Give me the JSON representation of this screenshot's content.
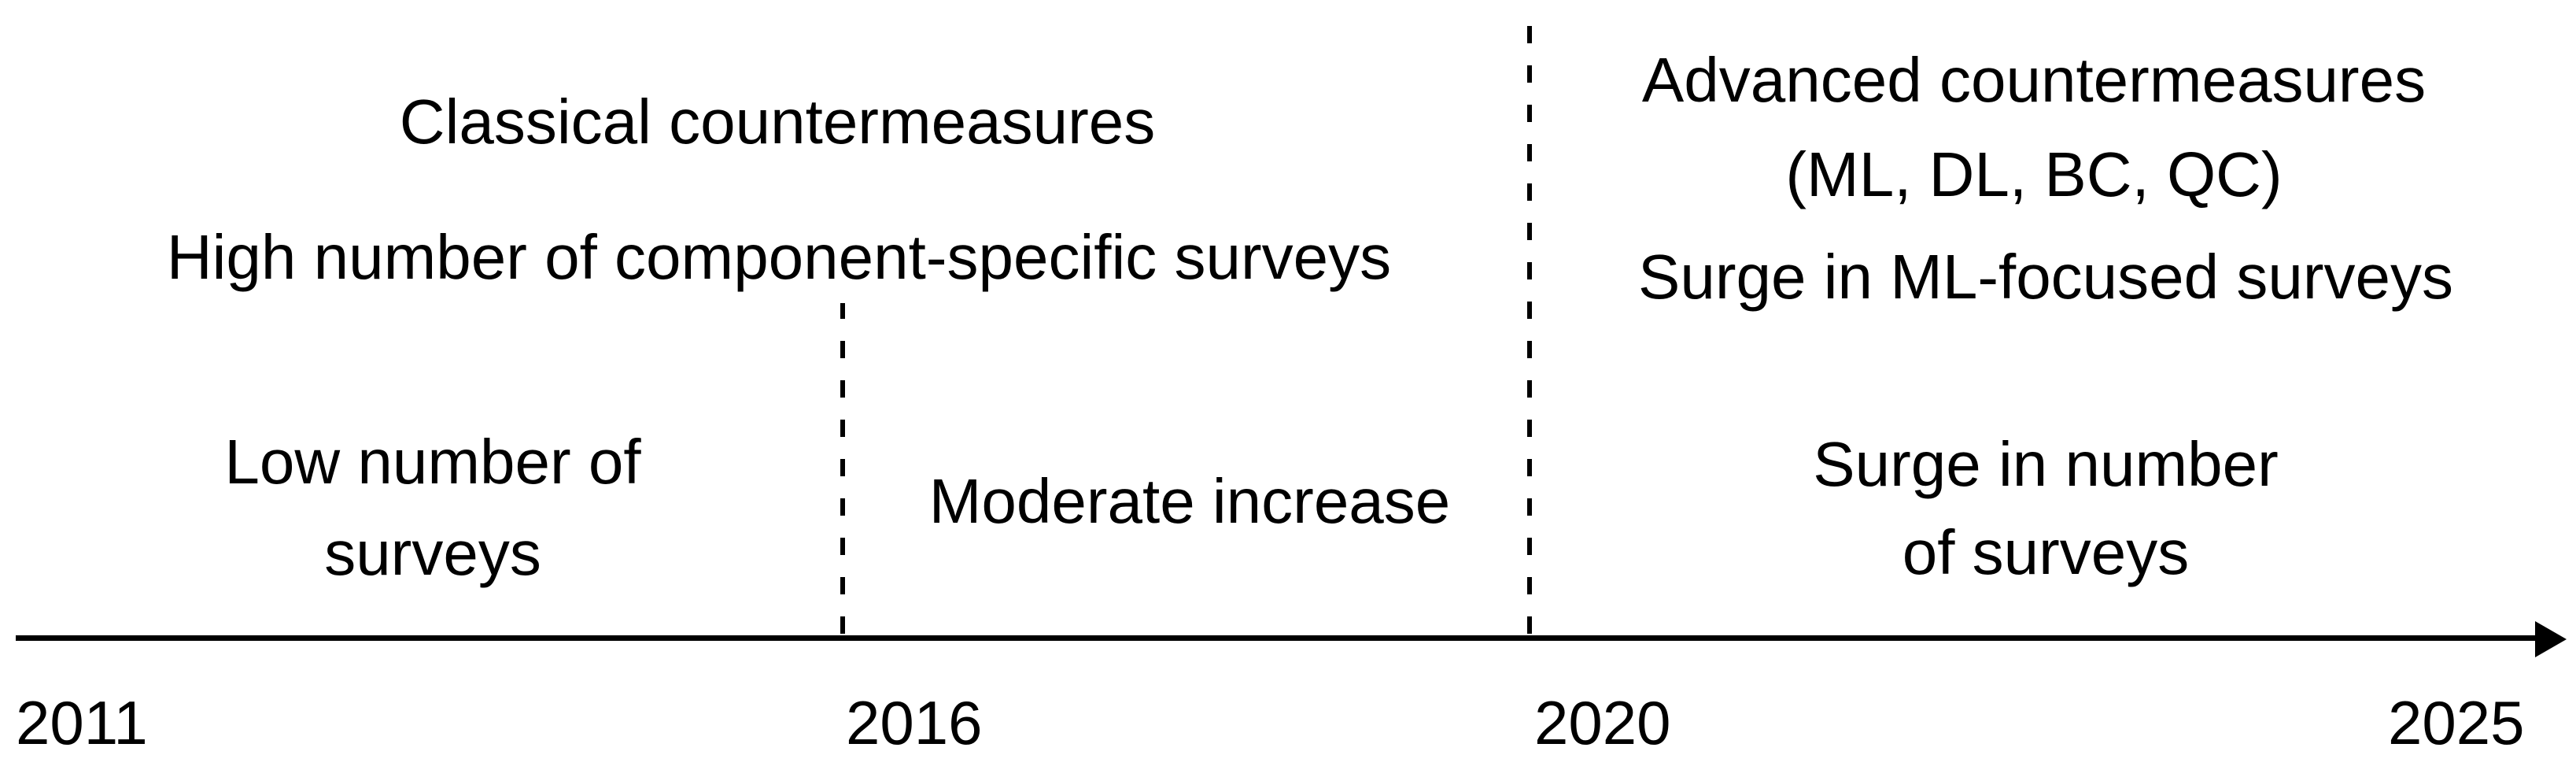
{
  "colors": {
    "ink": "#000000",
    "background": "#ffffff"
  },
  "eras": {
    "classical": {
      "title": "Classical countermeasures",
      "subtitle": "High number of component-specific surveys"
    },
    "advanced": {
      "title": "Advanced countermeasures",
      "qualifier": "(ML, DL, BC, QC)",
      "subtitle": "Surge in ML-focused surveys"
    }
  },
  "phases": [
    {
      "lines": [
        "Low number of",
        "surveys"
      ]
    },
    {
      "lines": [
        "Moderate increase"
      ]
    },
    {
      "lines": [
        "Surge in number",
        "of surveys"
      ]
    }
  ],
  "axis": {
    "years": [
      "2011",
      "2016",
      "2020",
      "2025"
    ]
  }
}
